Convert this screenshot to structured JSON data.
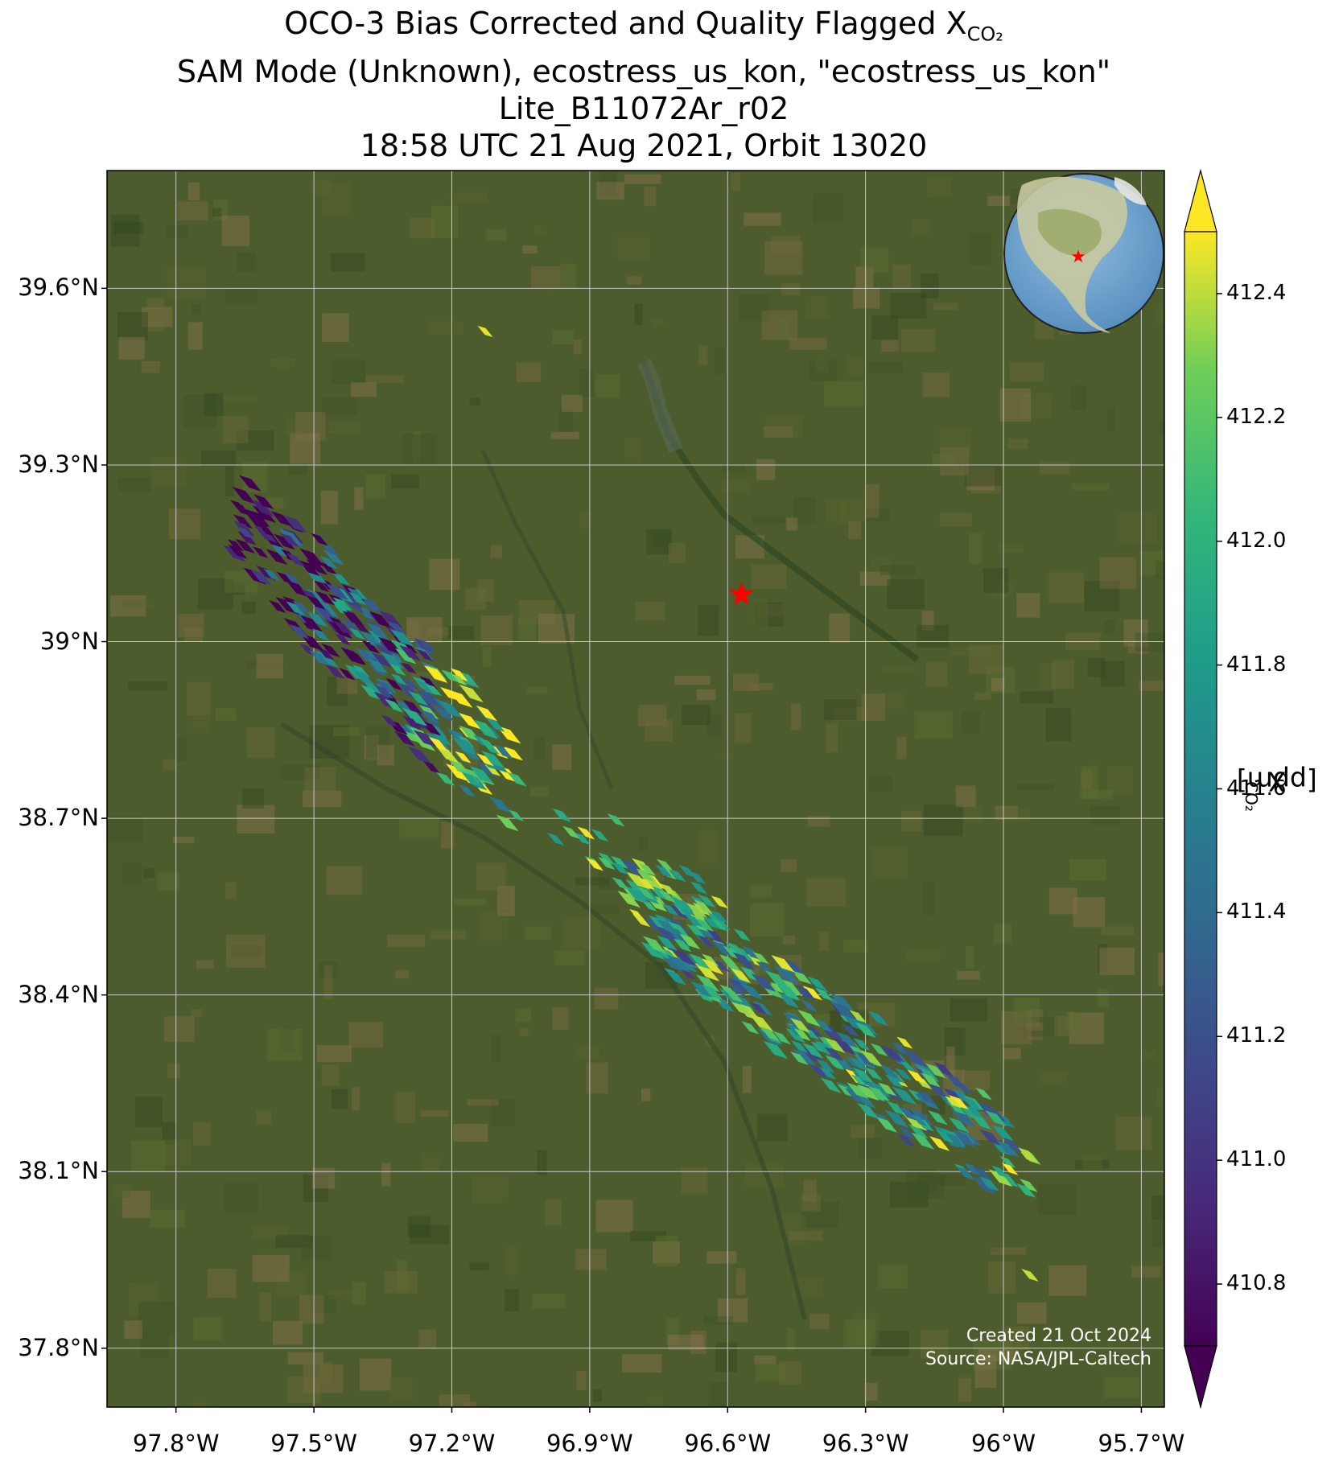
{
  "title": {
    "line1": "OCO-3 Bias Corrected and Quality Flagged X",
    "line1_sub": "CO₂",
    "line2": "SAM Mode (Unknown), ecostress_us_kon, \"ecostress_us_kon\"",
    "line3": "Lite_B11072Ar_r02",
    "line4": "18:58 UTC 21 Aug 2021, Orbit 13020"
  },
  "axes": {
    "lat_ticks": [
      "39.6°N",
      "39.3°N",
      "39°N",
      "38.7°N",
      "38.4°N",
      "38.1°N",
      "37.8°N"
    ],
    "lon_ticks": [
      "97.8°W",
      "97.5°W",
      "97.2°W",
      "96.9°W",
      "96.6°W",
      "96.3°W",
      "96°W",
      "95.7°W"
    ],
    "lat_values": [
      39.6,
      39.3,
      39.0,
      38.7,
      38.4,
      38.1,
      37.8
    ],
    "lon_values": [
      -97.8,
      -97.5,
      -97.2,
      -96.9,
      -96.6,
      -96.3,
      -96.0,
      -95.7
    ],
    "lat_range": [
      37.7,
      39.8
    ],
    "lon_range": [
      -97.95,
      -95.65
    ]
  },
  "site_marker": {
    "name": "ecostress_us_kon",
    "lat": 39.08,
    "lon": -96.57,
    "color": "#ff0000",
    "icon": "star-icon"
  },
  "colorbar": {
    "label": "X",
    "label_sub": "CO₂",
    "label_unit": "[ppm]",
    "ticks": [
      "412.4",
      "412.2",
      "412.0",
      "411.8",
      "411.6",
      "411.4",
      "411.2",
      "411.0",
      "410.8"
    ],
    "tick_values": [
      412.4,
      412.2,
      412.0,
      411.8,
      411.6,
      411.4,
      411.2,
      411.0,
      410.8
    ],
    "range": [
      410.7,
      412.5
    ],
    "colormap": "viridis",
    "extend": "both"
  },
  "credits": {
    "created": "Created 21 Oct 2024",
    "source": "Source: NASA/JPL-Caltech"
  },
  "inset_globe": {
    "content": "globe-icon",
    "marker_color": "#ff0000"
  },
  "colors": {
    "land_base": "#4a5a2a",
    "grid": "#c8c8c8",
    "star": "#ff0000"
  }
}
